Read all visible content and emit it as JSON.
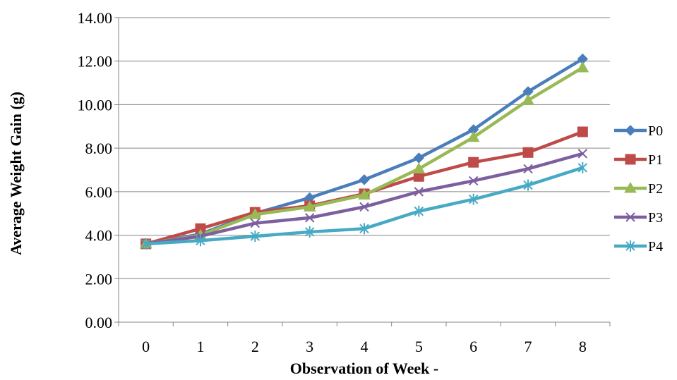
{
  "chart_data": {
    "type": "line",
    "title": "",
    "xlabel": "Observation of Week -",
    "ylabel": "Average Weight Gain (g)",
    "x": [
      0,
      1,
      2,
      3,
      4,
      5,
      6,
      7,
      8
    ],
    "ylim": [
      0,
      14
    ],
    "y_ticks": [
      "0.00",
      "2.00",
      "4.00",
      "6.00",
      "8.00",
      "10.00",
      "12.00",
      "14.00"
    ],
    "grid": true,
    "legend_position": "right",
    "series": [
      {
        "name": "P0",
        "color": "#4a7ebb",
        "marker": "diamond",
        "values": [
          3.6,
          4.05,
          5.0,
          5.72,
          6.55,
          7.55,
          8.85,
          10.6,
          12.1
        ]
      },
      {
        "name": "P1",
        "color": "#be4b48",
        "marker": "square",
        "values": [
          3.6,
          4.3,
          5.05,
          5.35,
          5.9,
          6.7,
          7.35,
          7.8,
          8.75
        ]
      },
      {
        "name": "P2",
        "color": "#98b954",
        "marker": "triangle",
        "values": [
          3.6,
          4.0,
          4.95,
          5.3,
          5.85,
          7.05,
          8.5,
          10.2,
          11.7
        ]
      },
      {
        "name": "P3",
        "color": "#7d5fa0",
        "marker": "x",
        "values": [
          3.6,
          3.95,
          4.55,
          4.8,
          5.3,
          6.0,
          6.5,
          7.05,
          7.75
        ]
      },
      {
        "name": "P4",
        "color": "#46aac5",
        "marker": "star",
        "values": [
          3.6,
          3.75,
          3.95,
          4.15,
          4.3,
          5.1,
          5.65,
          6.3,
          7.1
        ]
      }
    ]
  }
}
